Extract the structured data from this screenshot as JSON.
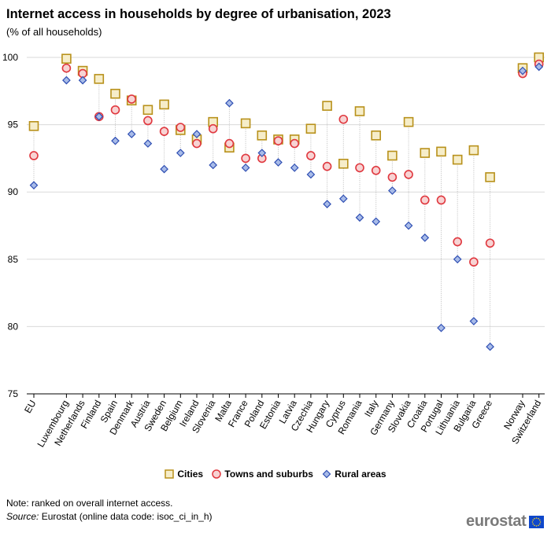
{
  "title": "Internet access in households by degree of urbanisation, 2023",
  "subtitle": "(% of all households)",
  "note": "Note: ranked on overall internet access.",
  "source_label": "Source:",
  "source_text": "Eurostat (online data code: isoc_ci_in_h)",
  "logo_text": "eurostat",
  "colors": {
    "cities_stroke": "#b8911b",
    "cities_fill": "#f6edc9",
    "towns_stroke": "#e0383f",
    "towns_fill": "#f7d3d3",
    "rural_stroke": "#2f4fb3",
    "rural_fill": "#a8bbe8",
    "gridline": "#d9d9d9",
    "connector": "#bdbdbd",
    "flag": "#0e47cb",
    "flag_stars": "#ffd617"
  },
  "chart_data": {
    "type": "scatter",
    "title": "Internet access in households by degree of urbanisation, 2023",
    "ylabel": "% of all households",
    "ylim": [
      75,
      100
    ],
    "yticks": [
      75,
      80,
      85,
      90,
      95,
      100
    ],
    "grid": true,
    "legend_position": "bottom",
    "categories": [
      "EU",
      "Luxembourg",
      "Netherlands",
      "Finland",
      "Spain",
      "Denmark",
      "Austria",
      "Sweden",
      "Belgium",
      "Ireland",
      "Slovenia",
      "Malta",
      "France",
      "Poland",
      "Estonia",
      "Latvia",
      "Czechia",
      "Hungary",
      "Cyprus",
      "Romania",
      "Italy",
      "Germany",
      "Slovakia",
      "Croatia",
      "Portugal",
      "Lithuania",
      "Bulgaria",
      "Greece",
      "Norway",
      "Switzerland"
    ],
    "gap_before": [
      "Luxembourg",
      "Norway"
    ],
    "series": [
      {
        "name": "Cities",
        "marker": "square",
        "values": [
          94.9,
          99.9,
          99.0,
          98.4,
          97.3,
          96.8,
          96.1,
          96.5,
          94.6,
          93.9,
          95.2,
          93.3,
          95.1,
          94.2,
          93.9,
          93.9,
          94.7,
          96.4,
          92.1,
          96.0,
          94.2,
          92.7,
          95.2,
          92.9,
          93.0,
          92.4,
          93.1,
          91.1,
          99.2,
          100.0
        ]
      },
      {
        "name": "Towns and suburbs",
        "marker": "circle",
        "values": [
          92.7,
          99.2,
          98.8,
          95.6,
          96.1,
          96.9,
          95.3,
          94.5,
          94.8,
          93.6,
          94.7,
          93.6,
          92.5,
          92.5,
          93.8,
          93.6,
          92.7,
          91.9,
          95.4,
          91.8,
          91.6,
          91.1,
          91.3,
          89.4,
          89.4,
          86.3,
          84.8,
          86.2,
          98.8,
          99.5
        ]
      },
      {
        "name": "Rural areas",
        "marker": "diamond",
        "values": [
          90.5,
          98.3,
          98.3,
          95.6,
          93.8,
          94.3,
          93.6,
          91.7,
          92.9,
          94.3,
          92.0,
          96.6,
          91.8,
          92.9,
          92.2,
          91.8,
          91.3,
          89.1,
          89.5,
          88.1,
          87.8,
          90.1,
          87.5,
          86.6,
          79.9,
          85.0,
          80.4,
          78.5,
          99.0,
          99.3
        ]
      }
    ]
  }
}
